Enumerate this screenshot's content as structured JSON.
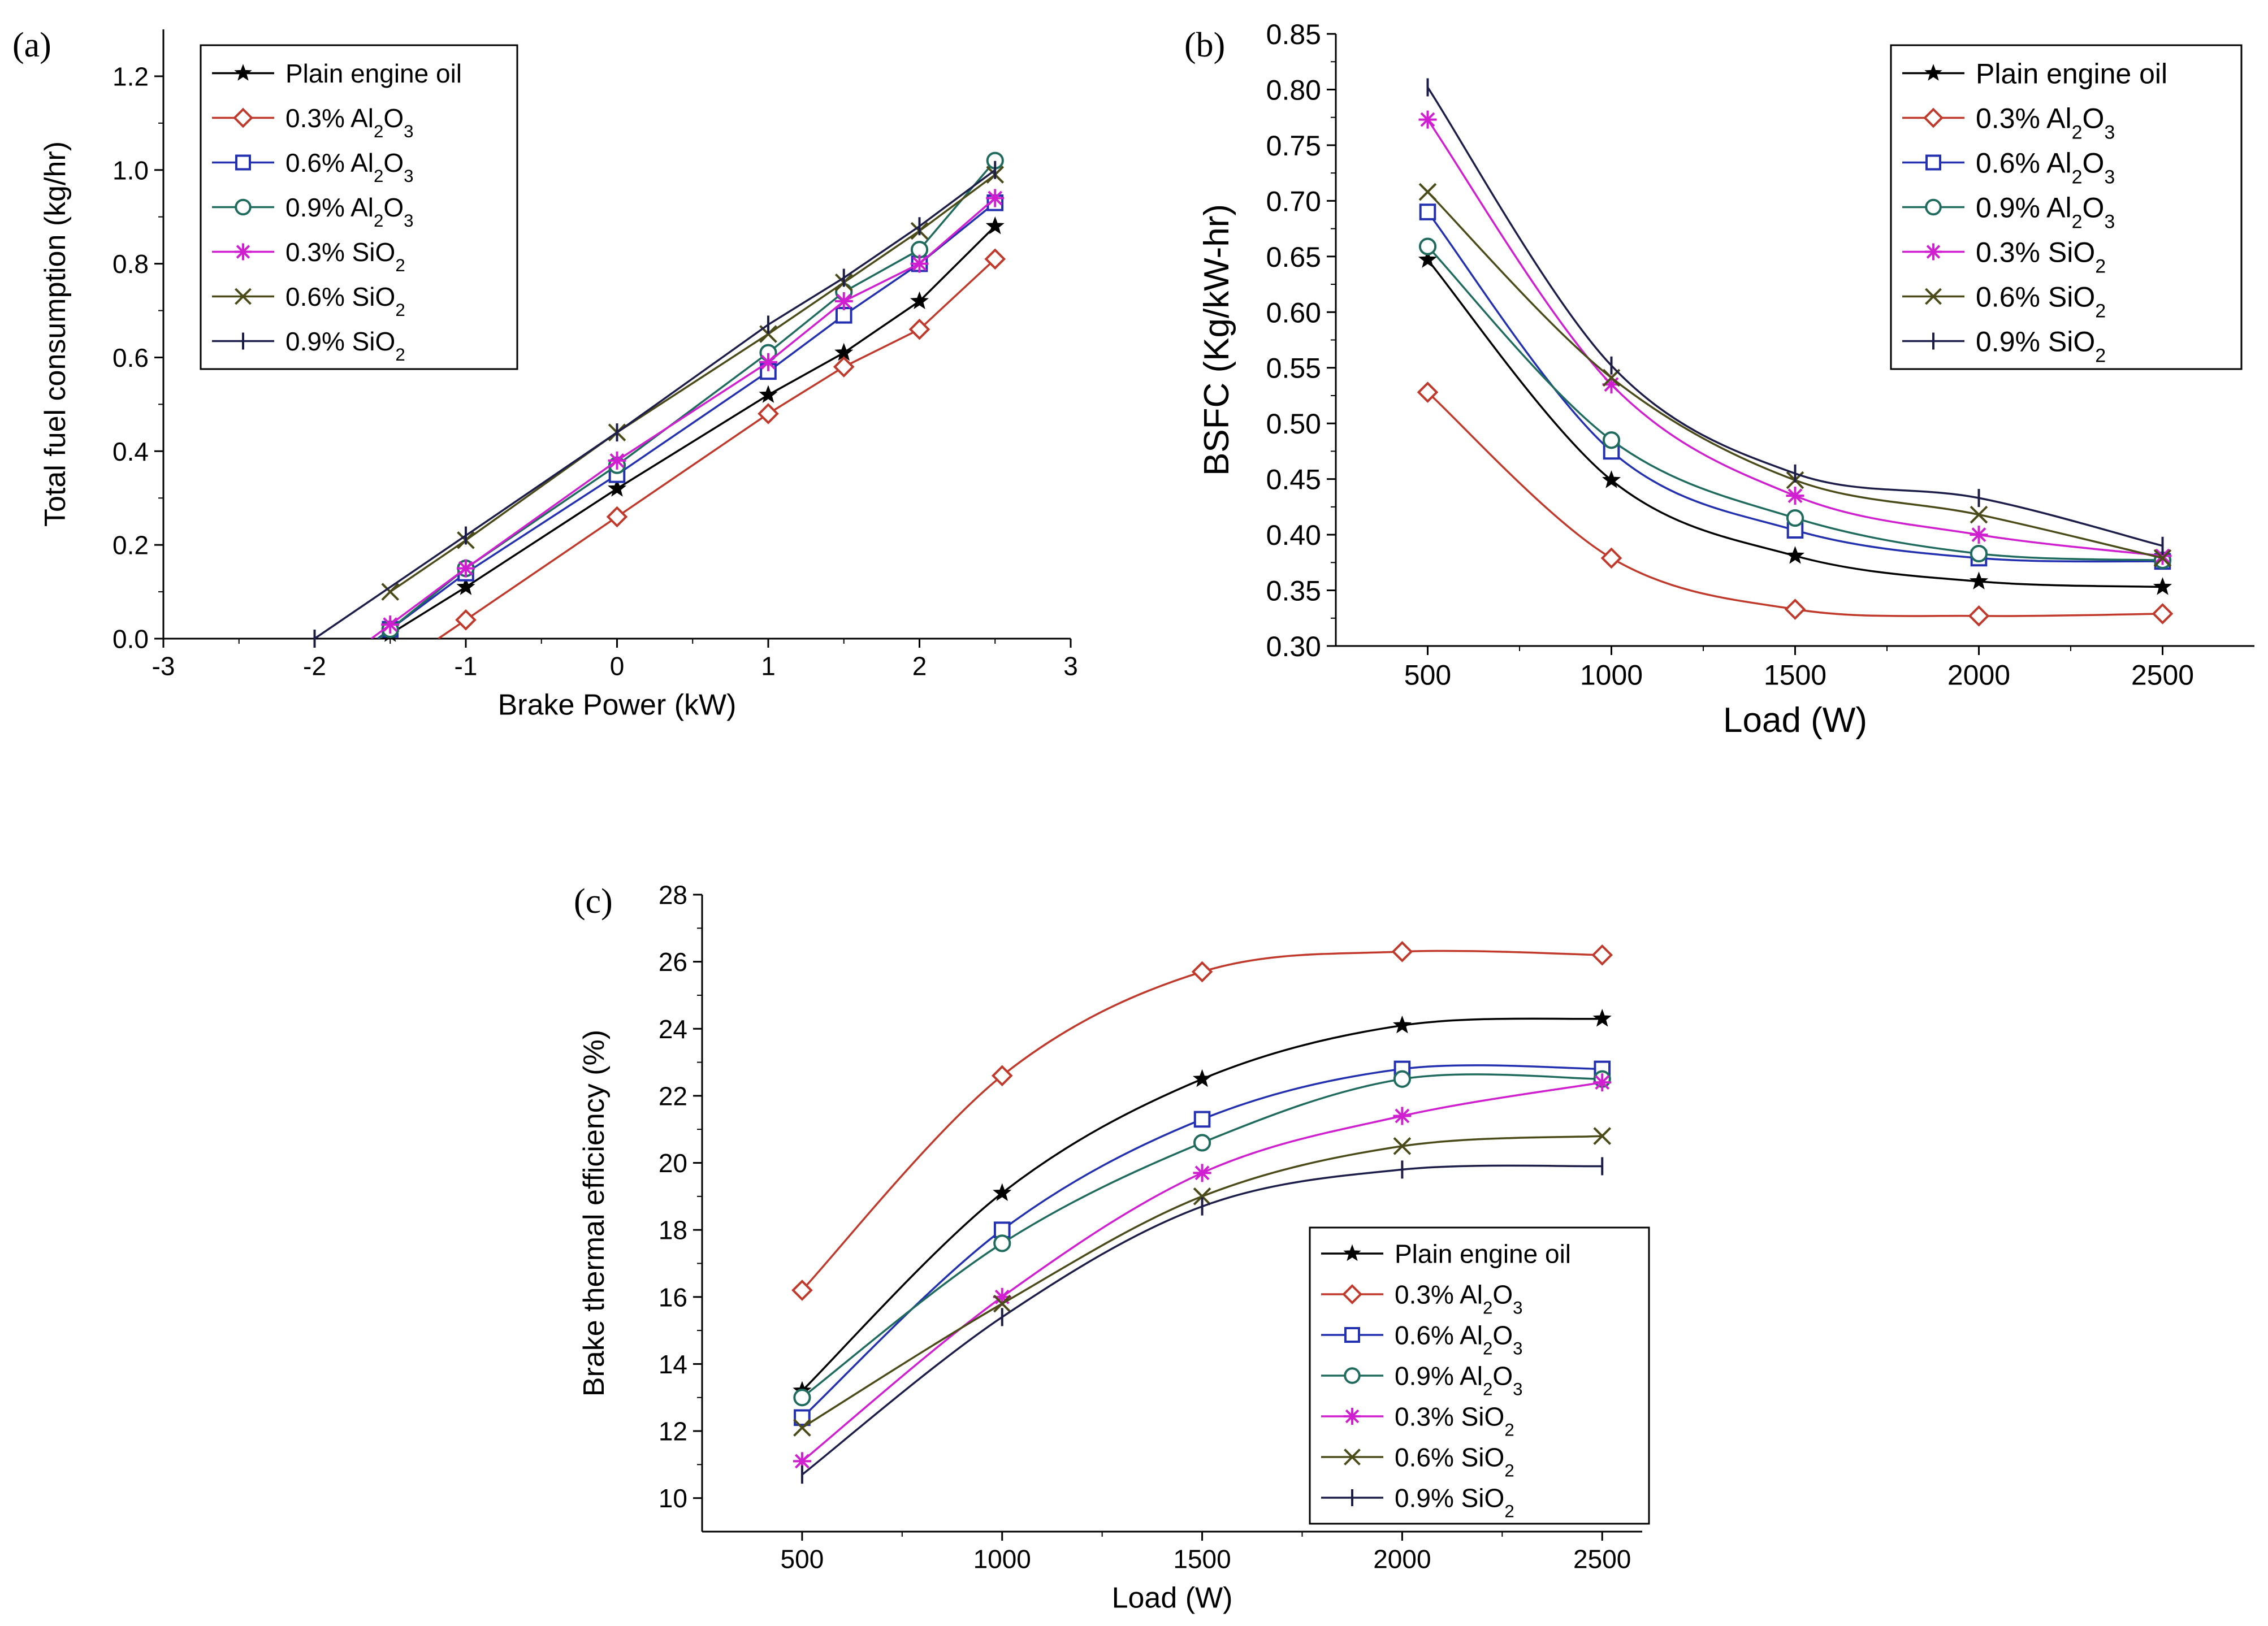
{
  "figure": {
    "series_styles": [
      {
        "color": "#000000",
        "marker": "star"
      },
      {
        "color": "#c0392b",
        "marker": "diamond"
      },
      {
        "color": "#2330b0",
        "marker": "square"
      },
      {
        "color": "#1f6b5e",
        "marker": "circle"
      },
      {
        "color": "#d01fd0",
        "marker": "asterisk"
      },
      {
        "color": "#4b4b1a",
        "marker": "x"
      },
      {
        "color": "#1d1d4a",
        "marker": "tick"
      }
    ]
  },
  "chart_data": [
    {
      "panel": "(a)",
      "type": "line",
      "xlabel": "Brake Power (kW)",
      "ylabel": "Total fuel consumption (kg/hr)",
      "xlim": [
        -3,
        3
      ],
      "ylim": [
        0,
        1.3
      ],
      "xticks": [
        "-3",
        "-2",
        "-1",
        "0",
        "1",
        "2",
        "3"
      ],
      "yticks": [
        "0.0",
        "0.2",
        "0.4",
        "0.6",
        "0.8",
        "1.0",
        "1.2"
      ],
      "legend_position": "top-left",
      "series": [
        {
          "name": "Plain engine oil",
          "sub": "",
          "tail": "",
          "x": [
            -1.5,
            -1,
            0,
            1,
            1.5,
            2,
            2.5
          ],
          "y": [
            0.01,
            0.11,
            0.32,
            0.52,
            0.61,
            0.72,
            0.88
          ],
          "extrapolate_to_zero": true
        },
        {
          "name": "0.3% Al",
          "sub": "2",
          "tail": "O",
          "sub2": "3",
          "x": [
            -1,
            0,
            1,
            1.5,
            2,
            2.5
          ],
          "y": [
            0.04,
            0.26,
            0.48,
            0.58,
            0.66,
            0.81
          ],
          "extrapolate_to_zero": true
        },
        {
          "name": "0.6% Al",
          "sub": "2",
          "tail": "O",
          "sub2": "3",
          "x": [
            -1.5,
            -1,
            0,
            1,
            1.5,
            2,
            2.5
          ],
          "y": [
            0.02,
            0.14,
            0.35,
            0.57,
            0.69,
            0.8,
            0.93
          ],
          "extrapolate_to_zero": true
        },
        {
          "name": "0.9% Al",
          "sub": "2",
          "tail": "O",
          "sub2": "3",
          "x": [
            -1.5,
            -1,
            0,
            1,
            1.5,
            2,
            2.5
          ],
          "y": [
            0.02,
            0.15,
            0.37,
            0.61,
            0.74,
            0.83,
            1.02
          ],
          "extrapolate_to_zero": true
        },
        {
          "name": "0.3% SiO",
          "sub": "2",
          "tail": "",
          "x": [
            -1.5,
            -1,
            0,
            1,
            1.5,
            2,
            2.5
          ],
          "y": [
            0.03,
            0.15,
            0.38,
            0.59,
            0.72,
            0.8,
            0.94
          ],
          "extrapolate_to_zero": true
        },
        {
          "name": "0.6% SiO",
          "sub": "2",
          "tail": "",
          "x": [
            -1.5,
            -1,
            0,
            1,
            1.5,
            2,
            2.5
          ],
          "y": [
            0.1,
            0.21,
            0.44,
            0.65,
            0.76,
            0.87,
            0.99
          ],
          "extrapolate_to_zero": false
        },
        {
          "name": "0.9% SiO",
          "sub": "2",
          "tail": "",
          "x": [
            -2,
            -1,
            0,
            1,
            1.5,
            2,
            2.5
          ],
          "y": [
            0.0,
            0.22,
            0.44,
            0.67,
            0.77,
            0.88,
            1.0
          ],
          "extrapolate_to_zero": false
        }
      ]
    },
    {
      "panel": "(b)",
      "type": "line",
      "xlabel": "Load (W)",
      "ylabel": "BSFC (Kg/kW-hr)",
      "xlim": [
        250,
        2750
      ],
      "ylim": [
        0.3,
        0.85
      ],
      "xticks": [
        "500",
        "1000",
        "1500",
        "2000",
        "2500"
      ],
      "yticks": [
        "0.30",
        "0.35",
        "0.40",
        "0.45",
        "0.50",
        "0.55",
        "0.60",
        "0.65",
        "0.70",
        "0.75",
        "0.80",
        "0.85"
      ],
      "legend_position": "top-right",
      "series": [
        {
          "name": "Plain engine oil",
          "sub": "",
          "tail": "",
          "x": [
            500,
            1000,
            1500,
            2000,
            2500
          ],
          "y": [
            0.647,
            0.449,
            0.381,
            0.358,
            0.353
          ],
          "smooth": true
        },
        {
          "name": "0.3% Al",
          "sub": "2",
          "tail": "O",
          "sub2": "3",
          "x": [
            500,
            1000,
            1500,
            2000,
            2500
          ],
          "y": [
            0.528,
            0.379,
            0.333,
            0.327,
            0.329
          ],
          "smooth": true
        },
        {
          "name": "0.6% Al",
          "sub": "2",
          "tail": "O",
          "sub2": "3",
          "x": [
            500,
            1000,
            1500,
            2000,
            2500
          ],
          "y": [
            0.69,
            0.475,
            0.404,
            0.379,
            0.376
          ],
          "smooth": true
        },
        {
          "name": "0.9% Al",
          "sub": "2",
          "tail": "O",
          "sub2": "3",
          "x": [
            500,
            1000,
            1500,
            2000,
            2500
          ],
          "y": [
            0.659,
            0.485,
            0.415,
            0.383,
            0.377
          ],
          "smooth": true
        },
        {
          "name": "0.3% SiO",
          "sub": "2",
          "tail": "",
          "x": [
            500,
            1000,
            1500,
            2000,
            2500
          ],
          "y": [
            0.773,
            0.535,
            0.435,
            0.4,
            0.381
          ],
          "smooth": true
        },
        {
          "name": "0.6% SiO",
          "sub": "2",
          "tail": "",
          "x": [
            500,
            1000,
            1500,
            2000,
            2500
          ],
          "y": [
            0.708,
            0.541,
            0.449,
            0.418,
            0.379
          ],
          "smooth": true
        },
        {
          "name": "0.9% SiO",
          "sub": "2",
          "tail": "",
          "x": [
            500,
            1000,
            1500,
            2000,
            2500
          ],
          "y": [
            0.802,
            0.552,
            0.455,
            0.433,
            0.39
          ],
          "smooth": true
        }
      ]
    },
    {
      "panel": "(c)",
      "type": "line",
      "xlabel": "Load (W)",
      "ylabel": "Brake thermal efficiency (%)",
      "xlim": [
        250,
        2600
      ],
      "ylim": [
        9,
        28
      ],
      "xticks": [
        "500",
        "1000",
        "1500",
        "2000",
        "2500"
      ],
      "yticks": [
        "10",
        "12",
        "14",
        "16",
        "18",
        "20",
        "22",
        "24",
        "26",
        "28"
      ],
      "legend_position": "bottom-right",
      "series": [
        {
          "name": "Plain engine oil",
          "sub": "",
          "tail": "",
          "x": [
            500,
            1000,
            1500,
            2000,
            2500
          ],
          "y": [
            13.2,
            19.1,
            22.5,
            24.1,
            24.3
          ],
          "smooth": true
        },
        {
          "name": "0.3% Al",
          "sub": "2",
          "tail": "O",
          "sub2": "3",
          "x": [
            500,
            1000,
            1500,
            2000,
            2500
          ],
          "y": [
            16.2,
            22.6,
            25.7,
            26.3,
            26.2
          ],
          "smooth": true
        },
        {
          "name": "0.6% Al",
          "sub": "2",
          "tail": "O",
          "sub2": "3",
          "x": [
            500,
            1000,
            1500,
            2000,
            2500
          ],
          "y": [
            12.4,
            18.0,
            21.3,
            22.8,
            22.8
          ],
          "smooth": true
        },
        {
          "name": "0.9% Al",
          "sub": "2",
          "tail": "O",
          "sub2": "3",
          "x": [
            500,
            1000,
            1500,
            2000,
            2500
          ],
          "y": [
            13.0,
            17.6,
            20.6,
            22.5,
            22.5
          ],
          "smooth": true
        },
        {
          "name": "0.3% SiO",
          "sub": "2",
          "tail": "",
          "x": [
            500,
            1000,
            1500,
            2000,
            2500
          ],
          "y": [
            11.1,
            16.0,
            19.7,
            21.4,
            22.4
          ],
          "smooth": true
        },
        {
          "name": "0.6% SiO",
          "sub": "2",
          "tail": "",
          "x": [
            500,
            1000,
            1500,
            2000,
            2500
          ],
          "y": [
            12.1,
            15.8,
            19.0,
            20.5,
            20.8
          ],
          "smooth": true
        },
        {
          "name": "0.9% SiO",
          "sub": "2",
          "tail": "",
          "x": [
            500,
            1000,
            1500,
            2000,
            2500
          ],
          "y": [
            10.7,
            15.4,
            18.7,
            19.8,
            19.9
          ],
          "smooth": true
        }
      ]
    }
  ]
}
